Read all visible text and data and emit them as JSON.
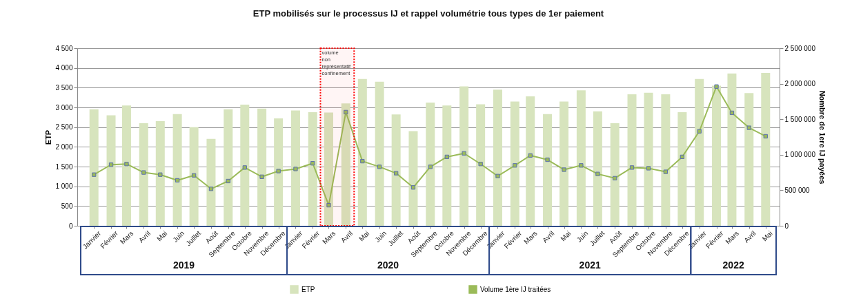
{
  "chart_data": {
    "type": "bar",
    "title": "ETP mobilisés sur le processus IJ et rappel volumétrie tous types de 1er paiement",
    "ylabel": "ETP",
    "y2label": "Nombre de 1ere IJ payées",
    "x": [
      "2019-01",
      "2019-02",
      "2019-03",
      "2019-04",
      "2019-05",
      "2019-06",
      "2019-07",
      "2019-08",
      "2019-09",
      "2019-10",
      "2019-11",
      "2019-12",
      "2020-01",
      "2020-02",
      "2020-03",
      "2020-04",
      "2020-05",
      "2020-06",
      "2020-07",
      "2020-08",
      "2020-09",
      "2020-10",
      "2020-11",
      "2020-12",
      "2021-01",
      "2021-02",
      "2021-03",
      "2021-04",
      "2021-05",
      "2021-06",
      "2021-07",
      "2021-08",
      "2021-09",
      "2021-10",
      "2021-11",
      "2021-12",
      "2022-01",
      "2022-02",
      "2022-03",
      "2022-04",
      "2022-05"
    ],
    "xticks": [
      {
        "value": "2019-01",
        "label": "Janvier"
      },
      {
        "value": "2019-02",
        "label": "Février"
      },
      {
        "value": "2019-03",
        "label": "Mars"
      },
      {
        "value": "2019-04",
        "label": "Avril"
      },
      {
        "value": "2019-05",
        "label": "Mai"
      },
      {
        "value": "2019-06",
        "label": "Juin"
      },
      {
        "value": "2019-07",
        "label": "Juillet"
      },
      {
        "value": "2019-08",
        "label": "Août"
      },
      {
        "value": "2019-09",
        "label": "Septembre"
      },
      {
        "value": "2019-10",
        "label": "Octobre"
      },
      {
        "value": "2019-11",
        "label": "Novembre"
      },
      {
        "value": "2019-12",
        "label": "Décembre"
      },
      {
        "value": "2020-01",
        "label": "Janvier"
      },
      {
        "value": "2020-02",
        "label": "Février"
      },
      {
        "value": "2020-03",
        "label": "Mars"
      },
      {
        "value": "2020-04",
        "label": "Avril"
      },
      {
        "value": "2020-05",
        "label": "Mai"
      },
      {
        "value": "2020-06",
        "label": "Juin"
      },
      {
        "value": "2020-07",
        "label": "Juillet"
      },
      {
        "value": "2020-08",
        "label": "Août"
      },
      {
        "value": "2020-09",
        "label": "Septembre"
      },
      {
        "value": "2020-10",
        "label": "Octobre"
      },
      {
        "value": "2020-11",
        "label": "Novembre"
      },
      {
        "value": "2020-12",
        "label": "Décembre"
      },
      {
        "value": "2021-01",
        "label": "Janvier"
      },
      {
        "value": "2021-02",
        "label": "Février"
      },
      {
        "value": "2021-03",
        "label": "Mars"
      },
      {
        "value": "2021-04",
        "label": "Avril"
      },
      {
        "value": "2021-05",
        "label": "Mai"
      },
      {
        "value": "2021-06",
        "label": "Juin"
      },
      {
        "value": "2021-07",
        "label": "Juillet"
      },
      {
        "value": "2021-08",
        "label": "Août"
      },
      {
        "value": "2021-09",
        "label": "Septembre"
      },
      {
        "value": "2021-10",
        "label": "Octobre"
      },
      {
        "value": "2021-11",
        "label": "Novembre"
      },
      {
        "value": "2021-12",
        "label": "Décembre"
      },
      {
        "value": "2022-01",
        "label": "Janvier"
      },
      {
        "value": "2022-02",
        "label": "Février"
      },
      {
        "value": "2022-03",
        "label": "Mars"
      },
      {
        "value": "2022-04",
        "label": "Avril"
      },
      {
        "value": "2022-05",
        "label": "Mai"
      }
    ],
    "xlim": [
      "2018-12-08",
      "2022-05-20"
    ],
    "ylim": [
      0,
      4500
    ],
    "yticks": [
      0,
      500,
      {
        "value": 1000,
        "label": "1 000"
      },
      {
        "value": 1500,
        "label": "1 500"
      },
      {
        "value": 2000,
        "label": "2 000"
      },
      {
        "value": 2500,
        "label": "2 500"
      },
      {
        "value": 3000,
        "label": "3 000"
      },
      {
        "value": 3500,
        "label": "3 500"
      },
      {
        "value": 4000,
        "label": "4 000"
      },
      {
        "value": 4500,
        "label": "4 500"
      }
    ],
    "y2lim": [
      0,
      2500000
    ],
    "y2ticks": [
      0,
      {
        "value": 500000,
        "label": "500 000"
      },
      {
        "value": 1000000,
        "label": "1 000 000"
      },
      {
        "value": 1500000,
        "label": "1 500 000"
      },
      {
        "value": 2000000,
        "label": "2 000 000"
      },
      {
        "value": 2500000,
        "label": "2 500 000"
      }
    ],
    "series": [
      {
        "name": "ETP",
        "color": "#d7e4bd",
        "values": [
          2950,
          2800,
          3050,
          2600,
          2650,
          2830,
          2500,
          2200,
          2950,
          3070,
          2970,
          2720,
          2920,
          2880,
          2870,
          3100,
          3720,
          3650,
          2820,
          2400,
          3120,
          3050,
          3530,
          3080,
          3450,
          3150,
          3280,
          2830,
          3150,
          3430,
          2900,
          2600,
          3330,
          3370,
          3330,
          2880,
          3720,
          3550,
          3860,
          3360,
          3870
        ]
      },
      {
        "name": "Volume 1ère IJ traitées",
        "type": "line",
        "axis": "y2",
        "color": "#9bbb59",
        "marker": "square",
        "values": [
          720000,
          860000,
          870000,
          750000,
          720000,
          640000,
          710000,
          520000,
          630000,
          820000,
          690000,
          770000,
          800000,
          880000,
          290000,
          1600000,
          910000,
          830000,
          740000,
          540000,
          830000,
          970000,
          1020000,
          870000,
          700000,
          850000,
          990000,
          930000,
          790000,
          850000,
          730000,
          670000,
          820000,
          810000,
          760000,
          970000,
          1330000,
          1960000,
          1590000,
          1380000,
          1260000
        ]
      }
    ],
    "bands": [
      {
        "axis": "x",
        "from": "2020-02-15",
        "to": "2020-04-16",
        "label": "volume non représentatif confinement",
        "color": "#ff0000"
      }
    ],
    "annotations": [
      "2019",
      "2020",
      "2021",
      "2022"
    ],
    "grid": "y",
    "legend": "bottom"
  }
}
